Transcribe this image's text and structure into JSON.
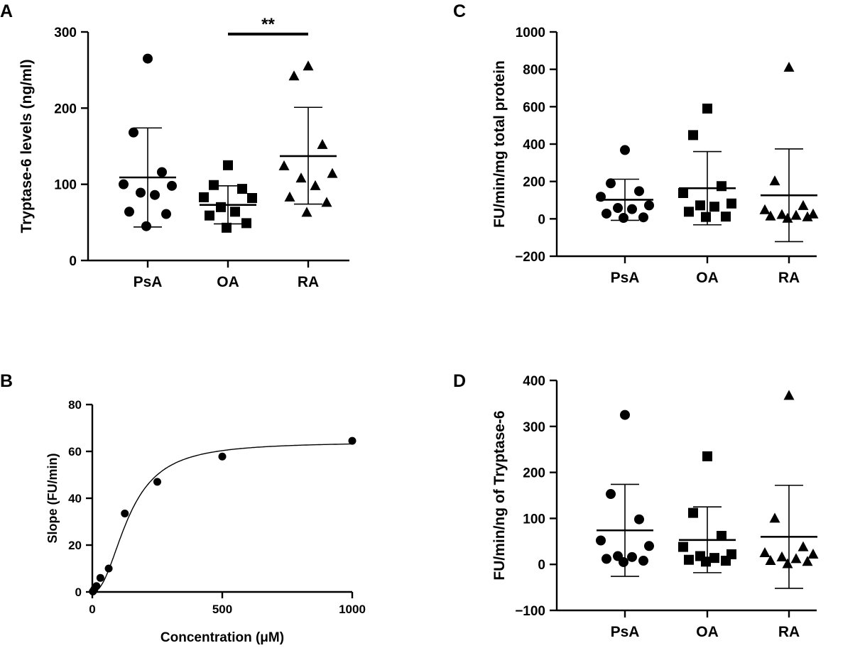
{
  "chart_data": [
    {
      "panel": "A",
      "type": "scatter",
      "ylabel": "Tryptase-6 levels (ng/ml)",
      "ylim": [
        0,
        300
      ],
      "yticks": [
        0,
        100,
        200,
        300
      ],
      "categories": [
        "PsA",
        "OA",
        "RA"
      ],
      "markers": [
        "circle",
        "square",
        "triangle"
      ],
      "groups": [
        {
          "name": "PsA",
          "mean": 109,
          "sd_low": 44,
          "sd_high": 174,
          "values": [
            265,
            168,
            116,
            100,
            98,
            89,
            86,
            64,
            61,
            45
          ]
        },
        {
          "name": "OA",
          "mean": 73,
          "sd_low": 48,
          "sd_high": 98,
          "values": [
            125,
            99,
            94,
            83,
            82,
            70,
            64,
            59,
            49,
            43
          ]
        },
        {
          "name": "RA",
          "mean": 137,
          "sd_low": 74,
          "sd_high": 201,
          "values": [
            255,
            242,
            152,
            124,
            114,
            108,
            98,
            83,
            76,
            63
          ]
        }
      ],
      "significance": {
        "from": "OA",
        "to": "RA",
        "label": "**"
      }
    },
    {
      "panel": "B",
      "type": "scatter",
      "xlabel": "Concentration (μM)",
      "ylabel": "Slope (FU/min)",
      "xlim": [
        0,
        1000
      ],
      "ylim": [
        0,
        80
      ],
      "xticks": [
        0,
        500,
        1000
      ],
      "yticks": [
        0,
        20,
        40,
        60,
        80
      ],
      "points": {
        "x": [
          2,
          4,
          8,
          16,
          31,
          63,
          125,
          250,
          500,
          1000
        ],
        "y": [
          0.2,
          0.5,
          1.2,
          2.5,
          6,
          10,
          33.5,
          47,
          57.8,
          64.5
        ]
      },
      "fit": {
        "model": "Hill",
        "vmax": 64,
        "k": 140,
        "n": 2.2
      }
    },
    {
      "panel": "C",
      "type": "scatter",
      "ylabel": "FU/min/mg total protein",
      "ylim": [
        -200,
        1000
      ],
      "yticks": [
        -200,
        0,
        200,
        400,
        600,
        800,
        1000
      ],
      "categories": [
        "PsA",
        "OA",
        "RA"
      ],
      "markers": [
        "circle",
        "square",
        "triangle"
      ],
      "groups": [
        {
          "name": "PsA",
          "mean": 102,
          "sd_low": -8,
          "sd_high": 212,
          "values": [
            368,
            190,
            148,
            118,
            72,
            58,
            52,
            28,
            8,
            5
          ]
        },
        {
          "name": "OA",
          "mean": 164,
          "sd_low": -32,
          "sd_high": 360,
          "values": [
            590,
            448,
            175,
            138,
            82,
            72,
            65,
            38,
            12,
            10
          ]
        },
        {
          "name": "RA",
          "mean": 126,
          "sd_low": -122,
          "sd_high": 374,
          "values": [
            810,
            202,
            70,
            48,
            25,
            22,
            18,
            14,
            10,
            2
          ]
        }
      ]
    },
    {
      "panel": "D",
      "type": "scatter",
      "ylabel": "FU/min/ng of Tryptase-6",
      "ylim": [
        -100,
        400
      ],
      "yticks": [
        -100,
        0,
        100,
        200,
        300,
        400
      ],
      "categories": [
        "PsA",
        "OA",
        "RA"
      ],
      "markers": [
        "circle",
        "square",
        "triangle"
      ],
      "groups": [
        {
          "name": "PsA",
          "mean": 74,
          "sd_low": -26,
          "sd_high": 174,
          "values": [
            325,
            153,
            98,
            52,
            40,
            18,
            16,
            12,
            8,
            5
          ]
        },
        {
          "name": "OA",
          "mean": 53,
          "sd_low": -18,
          "sd_high": 125,
          "values": [
            235,
            112,
            62,
            38,
            22,
            18,
            14,
            10,
            8,
            6
          ]
        },
        {
          "name": "RA",
          "mean": 60,
          "sd_low": -52,
          "sd_high": 172,
          "values": [
            367,
            100,
            38,
            25,
            22,
            16,
            12,
            8,
            6,
            1
          ]
        }
      ]
    }
  ]
}
